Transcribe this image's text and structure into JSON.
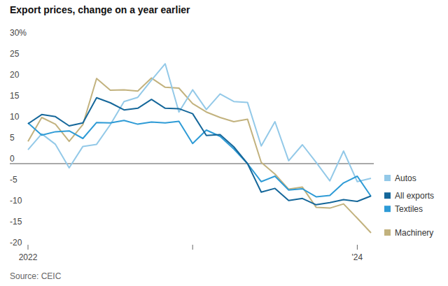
{
  "chart_data": {
    "type": "line",
    "title": "Export prices, change on a year earlier",
    "source": "Source: CEIC",
    "categories": [
      "2022",
      null,
      null,
      null,
      null,
      null,
      null,
      null,
      null,
      null,
      null,
      null,
      null,
      null,
      null,
      null,
      null,
      null,
      null,
      null,
      null,
      null,
      null,
      null,
      "'24",
      null
    ],
    "series": [
      {
        "name": "Autos",
        "color": "#93c9e8",
        "values": [
          3.3,
          7.1,
          4.6,
          -1,
          4.1,
          4.6,
          9.3,
          14.8,
          15.8,
          19.9,
          23.8,
          12.3,
          17.6,
          12.9,
          16.6,
          14.8,
          14.6,
          4.2,
          10,
          0.7,
          4.5,
          0.3,
          -4.1,
          3,
          -4.3,
          -3.5
        ]
      },
      {
        "name": "All exports",
        "color": "#15679a",
        "values": [
          9.5,
          11.7,
          11.2,
          9,
          9.7,
          15.7,
          14.5,
          12.8,
          13.2,
          15.3,
          13.2,
          13.1,
          11.9,
          6.7,
          6.9,
          4,
          0,
          -6.8,
          -5.9,
          -8.8,
          -8.3,
          -9.8,
          -9.3,
          -8.6,
          -9,
          -7.7
        ]
      },
      {
        "name": "Textiles",
        "color": "#2e9bd6",
        "values": [
          9.7,
          6.8,
          7.6,
          7.8,
          6,
          9.8,
          9.7,
          10.3,
          9.4,
          9.9,
          9.7,
          10.1,
          4.8,
          8,
          6.5,
          3.5,
          0,
          -4.3,
          -3,
          -6.3,
          -6,
          -7.9,
          -7.6,
          -4.6,
          -3,
          -7.8
        ]
      },
      {
        "name": "Machinery",
        "color": "#c2b27e",
        "values": [
          5.3,
          11,
          9.4,
          5.3,
          9.3,
          20.3,
          17.5,
          17.6,
          17.3,
          20.4,
          18.2,
          18,
          14.3,
          12.3,
          11,
          10,
          10.6,
          0.3,
          -2.5,
          -6.1,
          -5.6,
          -10.4,
          -10.6,
          -9.6,
          -13,
          -16.5
        ]
      }
    ],
    "ylim": [
      -20,
      30
    ],
    "yticks": [
      -20,
      -15,
      -10,
      -5,
      0,
      5,
      10,
      15,
      20,
      25,
      {
        "value": 30,
        "label": "30%"
      }
    ],
    "legend": "right",
    "grid": false
  }
}
